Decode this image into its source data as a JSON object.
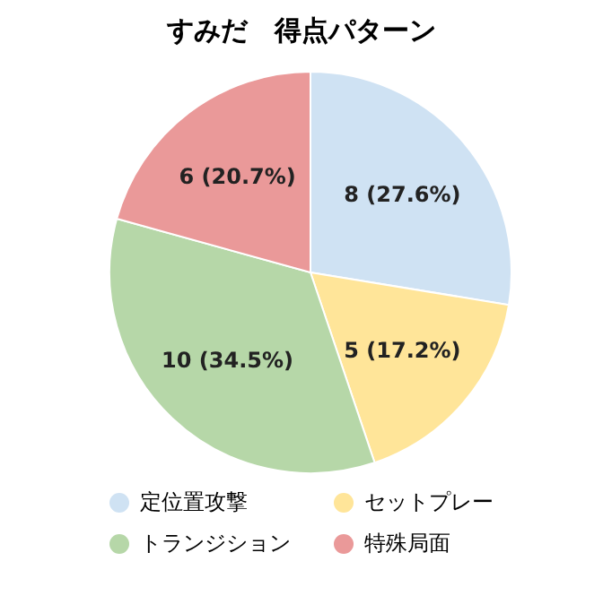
{
  "chart_data": {
    "type": "pie",
    "title": "すみだ　得点パターン",
    "categories": [
      "定位置攻撃",
      "セットプレー",
      "トランジション",
      "特殊局面"
    ],
    "values": [
      8,
      5,
      10,
      6
    ],
    "colors": [
      "#cfe2f3",
      "#ffe599",
      "#b6d7a8",
      "#ea9999"
    ],
    "value_labels": [
      "8 (27.6%)",
      "5 (17.2%)",
      "10 (34.5%)",
      "6 (20.7%)"
    ],
    "legend": "bottom"
  }
}
